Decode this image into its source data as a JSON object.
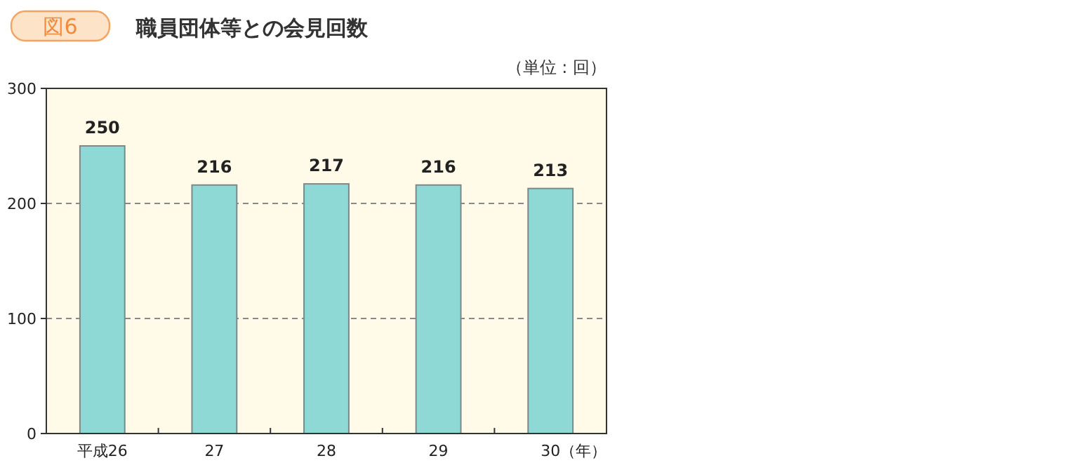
{
  "chart_data": {
    "type": "bar",
    "title": "職員団体等との会見回数",
    "annotations": [
      "図6",
      "（単位 : 回）"
    ],
    "xlabel": "（年）",
    "categories": [
      "平成26",
      "27",
      "28",
      "29",
      "30"
    ],
    "values": [
      250,
      216,
      217,
      216,
      213
    ],
    "color": "#8ed9d5",
    "ylim": [
      0,
      300
    ],
    "yticks": [
      0,
      100,
      200,
      300
    ],
    "grid": "y",
    "data_labels": true
  }
}
